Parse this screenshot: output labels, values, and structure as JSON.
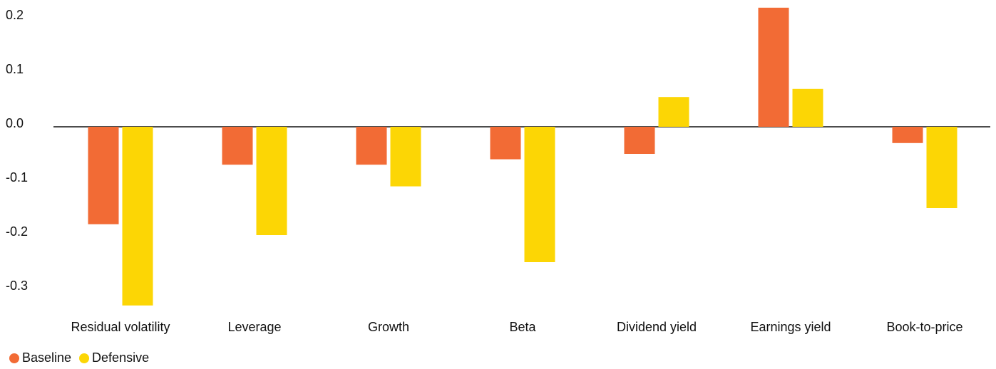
{
  "chart_data": {
    "type": "bar",
    "categories": [
      "Residual volatility",
      "Leverage",
      "Growth",
      "Beta",
      "Dividend yield",
      "Earnings yield",
      "Book-to-price"
    ],
    "series": [
      {
        "name": "Baseline",
        "color": "#f26b35",
        "values": [
          -0.18,
          -0.07,
          -0.07,
          -0.06,
          -0.05,
          0.22,
          -0.03
        ]
      },
      {
        "name": "Defensive",
        "color": "#fcd605",
        "values": [
          -0.33,
          -0.2,
          -0.11,
          -0.25,
          0.055,
          0.07,
          -0.15
        ]
      }
    ],
    "ylim": [
      -0.35,
      0.22
    ],
    "yticks": [
      0.2,
      0.1,
      {
        "value": 0,
        "label": "0.0"
      },
      -0.1,
      -0.2,
      -0.3
    ]
  }
}
